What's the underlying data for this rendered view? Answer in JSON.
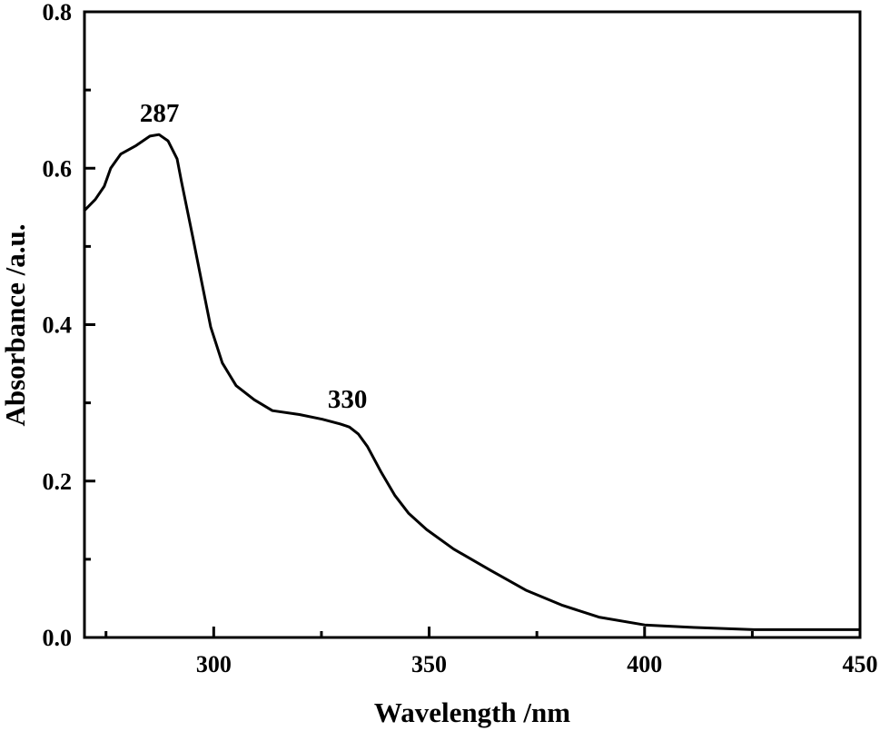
{
  "chart_data": {
    "type": "line",
    "title": "",
    "xlabel": "Wavelength /nm",
    "ylabel": "Absorbance /a.u.",
    "xlim": [
      270,
      450
    ],
    "ylim": [
      0.0,
      0.8
    ],
    "x_ticks": [
      300,
      350,
      400,
      450
    ],
    "x_tick_labels": [
      "300",
      "350",
      "400",
      "450"
    ],
    "x_minor_ticks": [
      275,
      325,
      375,
      425
    ],
    "y_ticks": [
      0.0,
      0.2,
      0.4,
      0.6,
      0.8
    ],
    "y_tick_labels": [
      "0.0",
      "0.2",
      "0.4",
      "0.6",
      "0.8"
    ],
    "y_minor_ticks": [
      0.1,
      0.3,
      0.5,
      0.7
    ],
    "grid": false,
    "legend": null,
    "line_color": "#000000",
    "annotations": [
      {
        "text": "287",
        "x": 287,
        "y": 0.643
      },
      {
        "text": "330",
        "x": 330,
        "y": 0.273
      }
    ],
    "series": [
      {
        "name": "Absorbance",
        "x": [
          270.0,
          272.5,
          274.6,
          276.1,
          278.4,
          282.0,
          285.2,
          287.3,
          289.4,
          291.5,
          292.5,
          295.1,
          297.2,
          299.3,
          302.0,
          305.2,
          309.4,
          313.6,
          319.9,
          325.2,
          329.4,
          331.5,
          333.6,
          335.7,
          338.9,
          342.0,
          345.2,
          349.4,
          355.7,
          364.2,
          372.6,
          381.0,
          389.4,
          400.0,
          410.5,
          425.3,
          450.0
        ],
        "values": [
          0.546,
          0.56,
          0.577,
          0.6,
          0.618,
          0.629,
          0.641,
          0.643,
          0.635,
          0.612,
          0.583,
          0.513,
          0.455,
          0.397,
          0.351,
          0.322,
          0.304,
          0.29,
          0.285,
          0.279,
          0.273,
          0.269,
          0.26,
          0.244,
          0.211,
          0.182,
          0.159,
          0.138,
          0.113,
          0.086,
          0.06,
          0.041,
          0.026,
          0.016,
          0.013,
          0.01,
          0.01
        ]
      }
    ]
  }
}
